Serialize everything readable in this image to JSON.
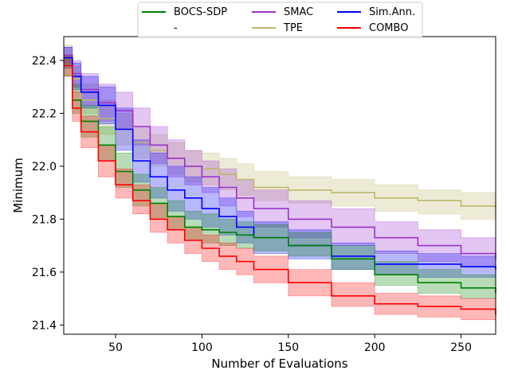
{
  "chart_data": {
    "type": "line",
    "title": "",
    "xlabel": "Number of Evaluations",
    "ylabel": "Minimum",
    "xlim": [
      20,
      270
    ],
    "ylim": [
      21.365,
      22.49
    ],
    "xticks": [
      50,
      100,
      150,
      200,
      250
    ],
    "yticks": [
      21.4,
      21.6,
      21.8,
      22.0,
      22.2,
      22.4
    ],
    "ytick_labels": [
      "21.4",
      "21.6",
      "21.8",
      "22.0",
      "22.2",
      "22.4"
    ],
    "grid": false,
    "legend": {
      "placement": "top-center, above plot",
      "entries": [
        {
          "label": "BOCS-SDP",
          "color": "#008000"
        },
        {
          "label": "-",
          "color": null
        },
        {
          "label": "SMAC",
          "color": "#9932cc"
        },
        {
          "label": "TPE",
          "color": "#bdb76b"
        },
        {
          "label": "Sim.Ann.",
          "color": "#0000ff"
        },
        {
          "label": "COMBO",
          "color": "#ff0000"
        }
      ]
    },
    "series": [
      {
        "name": "TPE",
        "color": "#bdb76b",
        "x": [
          20,
          25,
          30,
          40,
          50,
          60,
          70,
          80,
          90,
          100,
          110,
          120,
          130,
          150,
          175,
          200,
          225,
          250,
          270
        ],
        "y": [
          22.42,
          22.33,
          22.25,
          22.18,
          22.14,
          22.09,
          22.06,
          22.03,
          22.0,
          21.99,
          21.97,
          21.95,
          21.92,
          21.91,
          21.9,
          21.88,
          21.87,
          21.85,
          21.84
        ],
        "upper": [
          22.46,
          22.38,
          22.31,
          22.25,
          22.2,
          22.15,
          22.12,
          22.09,
          22.06,
          22.05,
          22.03,
          22.01,
          21.98,
          21.96,
          21.95,
          21.93,
          21.91,
          21.9,
          21.89
        ],
        "lower": [
          22.38,
          22.28,
          22.2,
          22.12,
          22.08,
          22.03,
          22.0,
          21.97,
          21.94,
          21.93,
          21.91,
          21.89,
          21.87,
          21.86,
          21.85,
          21.83,
          21.82,
          21.8,
          21.79
        ]
      },
      {
        "name": "SMAC",
        "color": "#9932cc",
        "x": [
          20,
          25,
          30,
          40,
          50,
          60,
          70,
          80,
          90,
          100,
          110,
          120,
          130,
          150,
          175,
          200,
          225,
          250,
          270
        ],
        "y": [
          22.42,
          22.35,
          22.29,
          22.24,
          22.21,
          22.15,
          22.08,
          22.03,
          22.0,
          21.96,
          21.92,
          21.88,
          21.84,
          21.8,
          21.77,
          21.73,
          21.7,
          21.67,
          21.65
        ],
        "upper": [
          22.45,
          22.4,
          22.35,
          22.31,
          22.28,
          22.22,
          22.15,
          22.1,
          22.06,
          22.02,
          21.99,
          21.95,
          21.91,
          21.87,
          21.84,
          21.79,
          21.76,
          21.73,
          21.7
        ],
        "lower": [
          22.39,
          22.3,
          22.23,
          22.17,
          22.14,
          22.08,
          22.01,
          21.96,
          21.93,
          21.9,
          21.85,
          21.81,
          21.77,
          21.73,
          21.7,
          21.67,
          21.64,
          21.62,
          21.61
        ]
      },
      {
        "name": "Sim.Ann.",
        "color": "#0000ff",
        "x": [
          20,
          25,
          30,
          40,
          50,
          60,
          70,
          80,
          90,
          100,
          110,
          120,
          130,
          150,
          175,
          200,
          225,
          250,
          270
        ],
        "y": [
          22.41,
          22.34,
          22.28,
          22.23,
          22.14,
          22.02,
          21.96,
          21.91,
          21.88,
          21.84,
          21.81,
          21.77,
          21.73,
          21.7,
          21.66,
          21.63,
          21.63,
          21.62,
          21.61
        ],
        "upper": [
          22.45,
          22.39,
          22.34,
          22.3,
          22.22,
          22.1,
          22.05,
          22.0,
          21.96,
          21.92,
          21.88,
          21.83,
          21.79,
          21.76,
          21.71,
          21.68,
          21.67,
          21.66,
          21.65
        ],
        "lower": [
          22.37,
          22.29,
          22.22,
          22.16,
          22.06,
          21.94,
          21.88,
          21.83,
          21.8,
          21.77,
          21.74,
          21.71,
          21.67,
          21.65,
          21.61,
          21.59,
          21.58,
          21.58,
          21.57
        ]
      },
      {
        "name": "BOCS-SDP",
        "color": "#008000",
        "x": [
          20,
          25,
          30,
          40,
          50,
          60,
          70,
          80,
          90,
          100,
          110,
          120,
          130,
          150,
          175,
          200,
          225,
          250,
          270
        ],
        "y": [
          22.38,
          22.25,
          22.17,
          22.08,
          21.98,
          21.91,
          21.86,
          21.81,
          21.77,
          21.76,
          21.75,
          21.74,
          21.73,
          21.7,
          21.65,
          21.59,
          21.56,
          21.54,
          21.52
        ],
        "upper": [
          22.42,
          22.31,
          22.23,
          22.15,
          22.05,
          21.97,
          21.92,
          21.87,
          21.83,
          21.82,
          21.8,
          21.79,
          21.78,
          21.75,
          21.7,
          21.64,
          21.61,
          21.59,
          21.57
        ],
        "lower": [
          22.34,
          22.2,
          22.11,
          22.02,
          21.92,
          21.85,
          21.8,
          21.76,
          21.72,
          21.71,
          21.7,
          21.69,
          21.68,
          21.66,
          21.61,
          21.55,
          21.52,
          21.5,
          21.49
        ]
      },
      {
        "name": "COMBO",
        "color": "#ff0000",
        "x": [
          20,
          25,
          30,
          40,
          50,
          60,
          70,
          80,
          90,
          100,
          110,
          120,
          130,
          150,
          175,
          200,
          225,
          250,
          270
        ],
        "y": [
          22.38,
          22.22,
          22.13,
          22.02,
          21.93,
          21.87,
          21.8,
          21.76,
          21.72,
          21.69,
          21.66,
          21.64,
          21.61,
          21.56,
          21.51,
          21.48,
          21.47,
          21.46,
          21.44
        ],
        "upper": [
          22.42,
          22.28,
          22.19,
          22.08,
          21.99,
          21.93,
          21.86,
          21.81,
          21.77,
          21.74,
          21.71,
          21.69,
          21.66,
          21.61,
          21.56,
          21.52,
          21.51,
          21.5,
          21.48
        ],
        "lower": [
          22.34,
          22.17,
          22.07,
          21.96,
          21.88,
          21.82,
          21.75,
          21.71,
          21.67,
          21.64,
          21.61,
          21.59,
          21.56,
          21.51,
          21.47,
          21.44,
          21.43,
          21.42,
          21.41
        ]
      }
    ]
  }
}
